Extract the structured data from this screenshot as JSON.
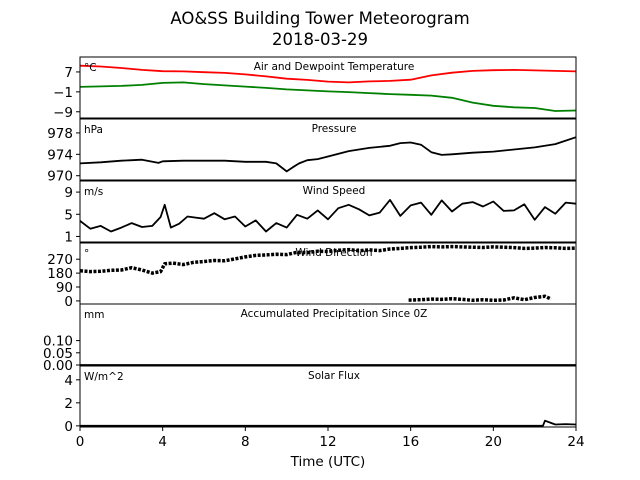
{
  "chart_data": {
    "type": "line",
    "title": "AO&SS Building Tower Meteorogram",
    "subtitle": "2018-03-29",
    "xlabel": "Time (UTC)",
    "xlim": [
      0,
      24
    ],
    "xticks": [
      0,
      4,
      8,
      12,
      16,
      20,
      24
    ],
    "panels": [
      {
        "id": "temp",
        "title": "Air and Dewpoint Temperature",
        "unit": "°C",
        "ylim": [
          -11.5,
          13
        ],
        "yticks": [
          7,
          -1,
          -9
        ],
        "ytick_labels": [
          "7",
          "−1",
          "−9"
        ],
        "series": [
          {
            "color": "#ff0000",
            "x": [
              0,
              1,
              2,
              3,
              4,
              5,
              6,
              7,
              8,
              9,
              10,
              11,
              12,
              13,
              14,
              15,
              16,
              17,
              18,
              19,
              20,
              21,
              22,
              23,
              24
            ],
            "values": [
              9.5,
              9.2,
              8.6,
              7.8,
              7.3,
              7.2,
              6.9,
              6.6,
              6.0,
              5.2,
              4.3,
              3.8,
              3.1,
              2.8,
              3.2,
              3.4,
              3.9,
              5.6,
              6.7,
              7.4,
              7.7,
              7.8,
              7.6,
              7.4,
              7.2
            ]
          },
          {
            "color": "#008000",
            "x": [
              0,
              1,
              2,
              3,
              4,
              5,
              6,
              7,
              8,
              9,
              10,
              11,
              12,
              13,
              14,
              15,
              16,
              17,
              18,
              19,
              20,
              21,
              22,
              23,
              24
            ],
            "values": [
              1.0,
              1.2,
              1.4,
              1.8,
              2.6,
              2.8,
              2.1,
              1.6,
              1.1,
              0.6,
              0.0,
              -0.4,
              -0.8,
              -1.1,
              -1.5,
              -1.9,
              -2.2,
              -2.5,
              -3.4,
              -5.3,
              -6.6,
              -7.2,
              -7.5,
              -8.7,
              -8.5
            ]
          }
        ]
      },
      {
        "id": "pressure",
        "title": "Pressure",
        "unit": "hPa",
        "ylim": [
          969.2,
          980.6
        ],
        "yticks": [
          970,
          974,
          978
        ],
        "ytick_labels": [
          "970",
          "974",
          "978"
        ],
        "series": [
          {
            "color": "#000000",
            "x": [
              0,
              1,
              2,
              3,
              3.8,
              4,
              5,
              6,
              7,
              8,
              9,
              9.5,
              10,
              10.3,
              10.6,
              11,
              11.5,
              12,
              13,
              14,
              15,
              15.5,
              16,
              16.5,
              17,
              17.5,
              18,
              19,
              20,
              21,
              22,
              23,
              24
            ],
            "values": [
              972.3,
              972.5,
              972.8,
              973.0,
              972.4,
              972.7,
              972.8,
              972.8,
              972.8,
              972.6,
              972.6,
              972.3,
              970.8,
              971.6,
              972.3,
              972.9,
              973.1,
              973.6,
              974.6,
              975.2,
              975.6,
              976.1,
              976.2,
              975.8,
              974.4,
              973.9,
              974.0,
              974.3,
              974.5,
              974.9,
              975.3,
              975.9,
              977.2
            ]
          }
        ]
      },
      {
        "id": "wind_speed",
        "title": "Wind Speed",
        "unit": "m/s",
        "ylim": [
          0,
          11
        ],
        "yticks": [
          1,
          5,
          9
        ],
        "ytick_labels": [
          "1",
          "5",
          "9"
        ],
        "series": [
          {
            "color": "#000000",
            "x": [
              0,
              0.5,
              1,
              1.5,
              2,
              2.5,
              3,
              3.5,
              3.9,
              4.1,
              4.4,
              4.8,
              5.2,
              5.6,
              6,
              6.5,
              7,
              7.5,
              8,
              8.5,
              9,
              9.5,
              10,
              10.5,
              11,
              11.5,
              12,
              12.5,
              13,
              13.5,
              14,
              14.5,
              15,
              15.5,
              16,
              16.5,
              17,
              17.5,
              18,
              18.5,
              19,
              19.5,
              20,
              20.5,
              21,
              21.5,
              22,
              22.5,
              23,
              23.5,
              24
            ],
            "values": [
              3.8,
              2.4,
              2.9,
              1.9,
              2.6,
              3.4,
              2.7,
              2.9,
              4.5,
              6.7,
              2.6,
              3.3,
              4.6,
              4.4,
              4.2,
              5.2,
              4.1,
              4.6,
              2.8,
              3.9,
              1.9,
              3.4,
              2.6,
              4.9,
              4.2,
              5.7,
              4.1,
              6.1,
              6.7,
              5.9,
              4.8,
              5.3,
              7.6,
              4.7,
              6.6,
              7.1,
              4.9,
              7.5,
              5.5,
              6.9,
              7.2,
              6.4,
              7.3,
              5.6,
              5.7,
              6.8,
              4.0,
              6.3,
              5.1,
              7.1,
              6.9
            ]
          }
        ]
      },
      {
        "id": "wind_direction",
        "title": "Wind Direction",
        "unit": "°",
        "ylim": [
          -20,
          375
        ],
        "yticks": [
          0,
          90,
          180,
          270
        ],
        "ytick_labels": [
          "0",
          "90",
          "180",
          "270"
        ],
        "series": [
          {
            "color": "#000000",
            "x": [
              0,
              0.5,
              1,
              1.5,
              2,
              2.5,
              3,
              3.5,
              3.9,
              4.1,
              4.5,
              5,
              5.5,
              6,
              6.5,
              7,
              7.5,
              8,
              8.5,
              9,
              9.5,
              10,
              10.5,
              11,
              11.5,
              12,
              12.5,
              13,
              13.5,
              14,
              14.5,
              15,
              15.5,
              16,
              16.5,
              17,
              17.5,
              18,
              18.5,
              19,
              19.5,
              20,
              20.5,
              21,
              21.5,
              22,
              22.5,
              23,
              23.5,
              24
            ],
            "values": [
              195,
              190,
              192,
              198,
              200,
              215,
              200,
              180,
              190,
              240,
              245,
              235,
              250,
              255,
              262,
              260,
              272,
              285,
              295,
              298,
              302,
              300,
              315,
              312,
              322,
              320,
              328,
              332,
              325,
              330,
              326,
              336,
              340,
              345,
              348,
              352,
              350,
              352,
              350,
              348,
              346,
              350,
              348,
              345,
              340,
              342,
              346,
              344,
              340,
              342
            ]
          },
          {
            "color": "#000000",
            "x": [
              15.9,
              16.5,
              17,
              17.5,
              18,
              18.5,
              19,
              19.5,
              20,
              20.5,
              21,
              21.5,
              22,
              22.5,
              22.8
            ],
            "values": [
              5,
              8,
              12,
              10,
              14,
              10,
              4,
              8,
              4,
              6,
              20,
              8,
              22,
              30,
              12
            ]
          }
        ]
      },
      {
        "id": "precip",
        "title": "Accumulated Precipitation Since 0Z",
        "unit": "mm",
        "ylim": [
          0,
          0.25
        ],
        "yticks": [
          0.0,
          0.05,
          0.1
        ],
        "ytick_labels": [
          "0.00",
          "0.05",
          "0.10"
        ],
        "series": [
          {
            "color": "#000000",
            "x": [
              0,
              24
            ],
            "values": [
              0.0,
              0.0
            ]
          }
        ]
      },
      {
        "id": "solar",
        "title": "Solar Flux",
        "unit": "W/m^2",
        "ylim": [
          -0.1,
          5.2
        ],
        "yticks": [
          0,
          2,
          4
        ],
        "ytick_labels": [
          "0",
          "2",
          "4"
        ],
        "series": [
          {
            "color": "#000000",
            "x": [
              0,
              22.4,
              22.5,
              22.8,
              23.0,
              23.5,
              24
            ],
            "values": [
              0.0,
              0.0,
              0.45,
              0.25,
              0.12,
              0.15,
              0.12
            ]
          }
        ]
      }
    ]
  }
}
